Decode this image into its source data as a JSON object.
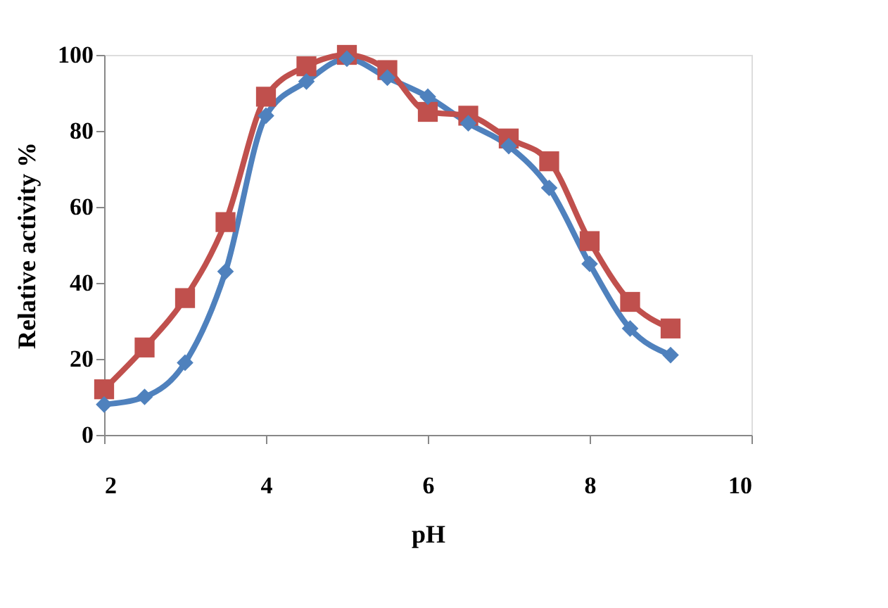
{
  "chart_data": {
    "type": "line",
    "xlabel": "pH",
    "ylabel": "Relative activity %",
    "x": [
      2,
      2.5,
      3,
      3.5,
      4,
      4.5,
      5,
      5.5,
      6,
      6.5,
      7,
      7.5,
      8,
      8.5,
      9
    ],
    "series": [
      {
        "color": "#4f81bd",
        "marker": "diamond",
        "values": [
          8,
          10,
          19,
          43,
          84,
          93,
          99,
          94,
          89,
          82,
          76,
          65,
          45,
          28,
          21
        ]
      },
      {
        "color": "#c0504d",
        "marker": "square",
        "values": [
          12,
          23,
          36,
          56,
          89,
          97,
          100,
          96,
          85,
          84,
          78,
          72,
          51,
          35,
          28
        ]
      }
    ],
    "xlim": [
      2,
      10
    ],
    "xticks": [
      2,
      4,
      6,
      8,
      10
    ],
    "ylim": [
      0,
      100
    ],
    "yticks": [
      0,
      20,
      40,
      60,
      80,
      100
    ],
    "grid": false
  }
}
